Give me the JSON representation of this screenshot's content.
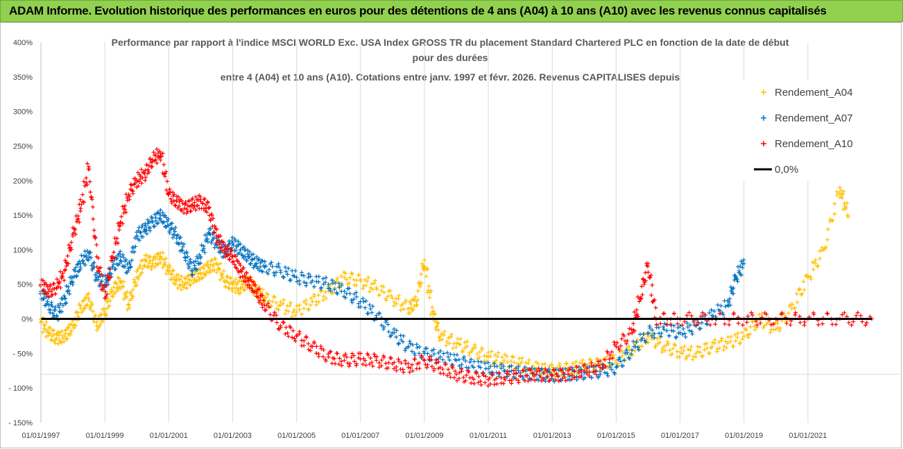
{
  "banner": {
    "text": "ADAM Informe. Evolution historique des performances en euros pour des détentions de 4 ans (A04) à 10 ans (A10) avec les revenus connus capitalisés",
    "background": "#92d050"
  },
  "chart_data": {
    "type": "scatter",
    "title_lines": [
      "Performance par rapport à l'indice MSCI WORLD Exc. USA Index GROSS TR  du placement Standard Chartered PLC en fonction de la date de début",
      "pour des durées",
      "entre 4 (A04) et 10 ans (A10). Cotations entre janv. 1997 et févr. 2026. Revenus CAPITALISES depuis"
    ],
    "xlabel": "",
    "ylabel": "",
    "x_tick_labels": [
      "01/01/1997",
      "01/01/1999",
      "01/01/2001",
      "01/01/2003",
      "01/01/2005",
      "01/01/2007",
      "01/01/2009",
      "01/01/2011",
      "01/01/2013",
      "01/01/2015",
      "01/01/2017",
      "01/01/2019",
      "01/01/2021"
    ],
    "y_tick_labels": [
      "400%",
      "350%",
      "300%",
      "250%",
      "200%",
      "150%",
      "100%",
      "50%",
      "0%",
      "- 50%",
      "- 100%",
      "- 150%"
    ],
    "y_unit": "percent",
    "xlim": [
      "1997-01-01",
      "2023-01-01"
    ],
    "ylim": [
      -150,
      400
    ],
    "grid": "vertical",
    "legend_position": "right",
    "marker": "cross",
    "reference_line": {
      "name": "0,0%",
      "value": 0,
      "color": "#000000"
    },
    "series": [
      {
        "name": "Rendement_A04",
        "color": "#ffc000",
        "points": [
          [
            "1997-01-01",
            -5
          ],
          [
            "1997-04-01",
            -20
          ],
          [
            "1997-07-01",
            -28
          ],
          [
            "1997-10-01",
            -25
          ],
          [
            "1998-01-01",
            -10
          ],
          [
            "1998-04-01",
            15
          ],
          [
            "1998-07-01",
            30
          ],
          [
            "1998-10-01",
            -10
          ],
          [
            "1999-01-01",
            10
          ],
          [
            "1999-04-01",
            40
          ],
          [
            "1999-07-01",
            55
          ],
          [
            "1999-10-01",
            20
          ],
          [
            "2000-01-01",
            60
          ],
          [
            "2000-04-01",
            85
          ],
          [
            "2000-07-01",
            80
          ],
          [
            "2000-10-01",
            90
          ],
          [
            "2001-01-01",
            70
          ],
          [
            "2001-04-01",
            55
          ],
          [
            "2001-07-01",
            50
          ],
          [
            "2001-10-01",
            60
          ],
          [
            "2002-01-01",
            65
          ],
          [
            "2002-04-01",
            75
          ],
          [
            "2002-07-01",
            80
          ],
          [
            "2002-10-01",
            55
          ],
          [
            "2003-01-01",
            50
          ],
          [
            "2003-04-01",
            45
          ],
          [
            "2003-07-01",
            55
          ],
          [
            "2003-10-01",
            40
          ],
          [
            "2004-01-01",
            30
          ],
          [
            "2004-07-01",
            20
          ],
          [
            "2005-01-01",
            10
          ],
          [
            "2005-07-01",
            25
          ],
          [
            "2006-01-01",
            40
          ],
          [
            "2006-07-01",
            60
          ],
          [
            "2007-01-01",
            55
          ],
          [
            "2007-07-01",
            45
          ],
          [
            "2008-01-01",
            30
          ],
          [
            "2008-07-01",
            15
          ],
          [
            "2008-10-01",
            25
          ],
          [
            "2009-01-01",
            85
          ],
          [
            "2009-04-01",
            10
          ],
          [
            "2009-07-01",
            -25
          ],
          [
            "2010-01-01",
            -35
          ],
          [
            "2010-07-01",
            -45
          ],
          [
            "2011-01-01",
            -55
          ],
          [
            "2011-07-01",
            -60
          ],
          [
            "2012-01-01",
            -65
          ],
          [
            "2012-07-01",
            -72
          ],
          [
            "2013-01-01",
            -75
          ],
          [
            "2013-07-01",
            -72
          ],
          [
            "2014-01-01",
            -68
          ],
          [
            "2014-07-01",
            -65
          ],
          [
            "2015-01-01",
            -60
          ],
          [
            "2015-07-01",
            -45
          ],
          [
            "2016-01-01",
            -25
          ],
          [
            "2016-07-01",
            -40
          ],
          [
            "2017-01-01",
            -48
          ],
          [
            "2017-07-01",
            -50
          ],
          [
            "2018-01-01",
            -40
          ],
          [
            "2018-07-01",
            -35
          ],
          [
            "2019-01-01",
            -25
          ],
          [
            "2019-07-01",
            0
          ],
          [
            "2020-01-01",
            -15
          ],
          [
            "2020-07-01",
            15
          ],
          [
            "2021-01-01",
            60
          ],
          [
            "2021-07-01",
            100
          ],
          [
            "2022-01-01",
            190
          ],
          [
            "2022-04-01",
            150
          ]
        ]
      },
      {
        "name": "Rendement_A07",
        "color": "#0070c0",
        "points": [
          [
            "1997-01-01",
            40
          ],
          [
            "1997-04-01",
            20
          ],
          [
            "1997-07-01",
            5
          ],
          [
            "1997-10-01",
            30
          ],
          [
            "1998-01-01",
            60
          ],
          [
            "1998-04-01",
            80
          ],
          [
            "1998-07-01",
            95
          ],
          [
            "1998-10-01",
            60
          ],
          [
            "1999-01-01",
            50
          ],
          [
            "1999-04-01",
            75
          ],
          [
            "1999-07-01",
            90
          ],
          [
            "1999-10-01",
            70
          ],
          [
            "2000-01-01",
            120
          ],
          [
            "2000-04-01",
            130
          ],
          [
            "2000-07-01",
            140
          ],
          [
            "2000-10-01",
            150
          ],
          [
            "2001-01-01",
            135
          ],
          [
            "2001-04-01",
            120
          ],
          [
            "2001-07-01",
            95
          ],
          [
            "2001-10-01",
            70
          ],
          [
            "2002-01-01",
            90
          ],
          [
            "2002-04-01",
            125
          ],
          [
            "2002-07-01",
            110
          ],
          [
            "2002-10-01",
            95
          ],
          [
            "2003-01-01",
            110
          ],
          [
            "2003-04-01",
            100
          ],
          [
            "2003-07-01",
            90
          ],
          [
            "2003-10-01",
            80
          ],
          [
            "2004-01-01",
            75
          ],
          [
            "2004-07-01",
            70
          ],
          [
            "2005-01-01",
            60
          ],
          [
            "2005-07-01",
            55
          ],
          [
            "2006-01-01",
            50
          ],
          [
            "2006-07-01",
            40
          ],
          [
            "2007-01-01",
            25
          ],
          [
            "2007-07-01",
            5
          ],
          [
            "2008-01-01",
            -20
          ],
          [
            "2008-07-01",
            -40
          ],
          [
            "2009-01-01",
            -50
          ],
          [
            "2009-07-01",
            -55
          ],
          [
            "2010-01-01",
            -60
          ],
          [
            "2010-07-01",
            -68
          ],
          [
            "2011-01-01",
            -72
          ],
          [
            "2011-07-01",
            -75
          ],
          [
            "2012-01-01",
            -78
          ],
          [
            "2012-07-01",
            -80
          ],
          [
            "2013-01-01",
            -82
          ],
          [
            "2013-07-01",
            -80
          ],
          [
            "2014-01-01",
            -78
          ],
          [
            "2014-07-01",
            -76
          ],
          [
            "2015-01-01",
            -70
          ],
          [
            "2015-07-01",
            -45
          ],
          [
            "2016-01-01",
            -20
          ],
          [
            "2016-07-01",
            -15
          ],
          [
            "2017-01-01",
            -20
          ],
          [
            "2017-07-01",
            -10
          ],
          [
            "2018-01-01",
            5
          ],
          [
            "2018-07-01",
            20
          ],
          [
            "2018-10-01",
            60
          ],
          [
            "2019-01-01",
            80
          ]
        ]
      },
      {
        "name": "Rendement_A10",
        "color": "#ff0000",
        "points": [
          [
            "1997-01-01",
            50
          ],
          [
            "1997-04-01",
            40
          ],
          [
            "1997-07-01",
            45
          ],
          [
            "1997-10-01",
            70
          ],
          [
            "1998-01-01",
            120
          ],
          [
            "1998-04-01",
            160
          ],
          [
            "1998-07-01",
            220
          ],
          [
            "1998-10-01",
            90
          ],
          [
            "1999-01-01",
            30
          ],
          [
            "1999-04-01",
            90
          ],
          [
            "1999-07-01",
            140
          ],
          [
            "1999-10-01",
            180
          ],
          [
            "2000-01-01",
            200
          ],
          [
            "2000-04-01",
            210
          ],
          [
            "2000-07-01",
            230
          ],
          [
            "2000-10-01",
            240
          ],
          [
            "2001-01-01",
            180
          ],
          [
            "2001-04-01",
            170
          ],
          [
            "2001-07-01",
            160
          ],
          [
            "2001-10-01",
            165
          ],
          [
            "2002-01-01",
            170
          ],
          [
            "2002-04-01",
            160
          ],
          [
            "2002-07-01",
            120
          ],
          [
            "2002-10-01",
            100
          ],
          [
            "2003-01-01",
            90
          ],
          [
            "2003-04-01",
            70
          ],
          [
            "2003-07-01",
            55
          ],
          [
            "2003-10-01",
            40
          ],
          [
            "2004-01-01",
            20
          ],
          [
            "2004-07-01",
            -10
          ],
          [
            "2005-01-01",
            -25
          ],
          [
            "2005-07-01",
            -40
          ],
          [
            "2006-01-01",
            -55
          ],
          [
            "2006-07-01",
            -60
          ],
          [
            "2007-01-01",
            -58
          ],
          [
            "2007-07-01",
            -60
          ],
          [
            "2008-01-01",
            -65
          ],
          [
            "2008-07-01",
            -70
          ],
          [
            "2009-01-01",
            -60
          ],
          [
            "2009-07-01",
            -70
          ],
          [
            "2010-01-01",
            -80
          ],
          [
            "2010-07-01",
            -85
          ],
          [
            "2011-01-01",
            -88
          ],
          [
            "2011-07-01",
            -85
          ],
          [
            "2012-01-01",
            -83
          ],
          [
            "2012-07-01",
            -80
          ],
          [
            "2013-01-01",
            -82
          ],
          [
            "2013-07-01",
            -80
          ],
          [
            "2014-01-01",
            -75
          ],
          [
            "2014-07-01",
            -70
          ],
          [
            "2015-01-01",
            -40
          ],
          [
            "2015-07-01",
            -20
          ],
          [
            "2015-10-01",
            30
          ],
          [
            "2016-01-01",
            80
          ],
          [
            "2016-04-01",
            0
          ],
          [
            "2017-01-01",
            0
          ],
          [
            "2018-01-01",
            0
          ],
          [
            "2019-01-01",
            0
          ],
          [
            "2020-01-01",
            0
          ],
          [
            "2021-01-01",
            0
          ],
          [
            "2022-01-01",
            0
          ],
          [
            "2023-01-01",
            0
          ]
        ]
      }
    ]
  }
}
